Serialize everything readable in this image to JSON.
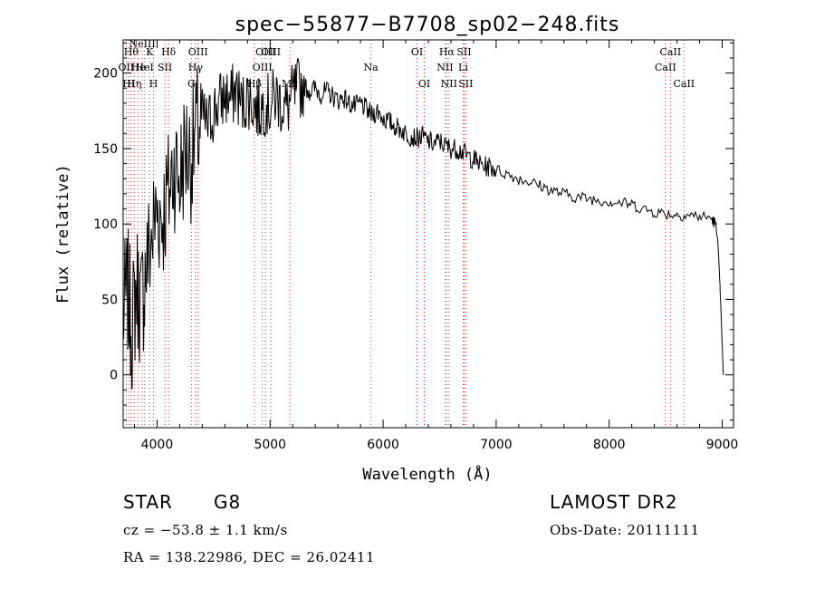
{
  "chart_data": {
    "type": "line",
    "title": "spec−55877−B7708_sp02−248.fits",
    "xlabel": "Wavelength (Å)",
    "ylabel": "Flux (relative)",
    "xlim": [
      3700,
      9100
    ],
    "ylim": [
      -35,
      222
    ],
    "xticks": [
      4000,
      5000,
      6000,
      7000,
      8000,
      9000
    ],
    "yticks": [
      0,
      50,
      100,
      150,
      200
    ],
    "grid": false,
    "series": [
      {
        "x": [
          3700,
          3740,
          3780,
          3820,
          3860,
          3900,
          3950,
          4000,
          4050,
          4100,
          4150,
          4200,
          4250,
          4300,
          4350,
          4400,
          4450,
          4500,
          4550,
          4600,
          4650,
          4700,
          4750,
          4800,
          4850,
          4900,
          4950,
          5000,
          5050,
          5100,
          5150,
          5200,
          5250,
          5300,
          5350,
          5400,
          5450,
          5500,
          5550,
          5600,
          5650,
          5700,
          5750,
          5800,
          5850,
          5900,
          5950,
          6000,
          6050,
          6100,
          6150,
          6200,
          6250,
          6300,
          6350,
          6400,
          6450,
          6500,
          6550,
          6600,
          6650,
          6700,
          6750,
          6800,
          6850,
          6900,
          6950,
          7000,
          7100,
          7200,
          7300,
          7400,
          7500,
          7600,
          7700,
          7800,
          7900,
          8000,
          8100,
          8200,
          8300,
          8400,
          8500,
          8600,
          8700,
          8800,
          8900,
          8940,
          8960,
          8980,
          9000,
          9010
        ],
        "y": [
          40,
          55,
          30,
          60,
          45,
          70,
          90,
          110,
          105,
          120,
          140,
          130,
          150,
          145,
          160,
          170,
          165,
          175,
          180,
          185,
          182,
          190,
          178,
          185,
          180,
          175,
          180,
          178,
          185,
          180,
          176,
          185,
          190,
          192,
          188,
          190,
          186,
          188,
          185,
          182,
          184,
          180,
          178,
          180,
          176,
          172,
          175,
          170,
          168,
          165,
          163,
          160,
          158,
          157,
          158,
          155,
          153,
          155,
          152,
          150,
          150,
          148,
          145,
          143,
          140,
          138,
          138,
          136,
          133,
          130,
          128,
          125,
          122,
          120,
          118,
          117,
          116,
          115,
          114,
          113,
          110,
          108,
          107,
          106,
          106,
          105,
          104,
          100,
          90,
          60,
          20,
          0
        ]
      }
    ],
    "lines": [
      {
        "x": 3727,
        "label": "OII",
        "row": 2
      },
      {
        "x": 3750,
        "label": "HI",
        "row": 3
      },
      {
        "x": 3771,
        "label": "Hθ",
        "row": 1
      },
      {
        "x": 3798,
        "label": "Hη",
        "row": 3
      },
      {
        "x": 3835,
        "label": "He",
        "row": 2
      },
      {
        "x": 3869,
        "label": "NeIII",
        "row": 0
      },
      {
        "x": 3889,
        "label": "HeI",
        "row": 2
      },
      {
        "x": 3934,
        "label": "K",
        "row": 1
      },
      {
        "x": 3969,
        "label": "H",
        "row": 3
      },
      {
        "x": 4069,
        "label": "SII",
        "row": 2
      },
      {
        "x": 4102,
        "label": "Hδ",
        "row": 1
      },
      {
        "x": 4304,
        "label": "G",
        "row": 3
      },
      {
        "x": 4340,
        "label": "Hγ",
        "row": 2
      },
      {
        "x": 4363,
        "label": "OIII",
        "row": 1
      },
      {
        "x": 4861,
        "label": "Hβ",
        "row": 3
      },
      {
        "x": 4931,
        "label": "OIII",
        "row": 2
      },
      {
        "x": 4959,
        "label": "OIII",
        "row": 1
      },
      {
        "x": 5007,
        "label": "OIII",
        "row": 1
      },
      {
        "x": 5175,
        "label": "Mg",
        "row": 3
      },
      {
        "x": 5892,
        "label": "Na",
        "row": 2
      },
      {
        "x": 6300,
        "label": "OI",
        "row": 1
      },
      {
        "x": 6364,
        "label": "OI",
        "row": 3
      },
      {
        "x": 6548,
        "label": "NII",
        "row": 2
      },
      {
        "x": 6563,
        "label": "Hα",
        "row": 1
      },
      {
        "x": 6583,
        "label": "NII",
        "row": 3
      },
      {
        "x": 6708,
        "label": "Li",
        "row": 2
      },
      {
        "x": 6716,
        "label": "SII",
        "row": 1
      },
      {
        "x": 6731,
        "label": "SII",
        "row": 3
      },
      {
        "x": 8498,
        "label": "CaII",
        "row": 2
      },
      {
        "x": 8542,
        "label": "CaII",
        "row": 1
      },
      {
        "x": 8662,
        "label": "CaII",
        "row": 3
      }
    ]
  },
  "info": {
    "object_class": "STAR",
    "subclass": "G8",
    "survey": "LAMOST DR2",
    "redshift": "cz = −53.8 ± 1.1 km/s",
    "obs_date": "Obs-Date: 20111111",
    "coords": "RA = 138.22986, DEC =  26.02411"
  }
}
